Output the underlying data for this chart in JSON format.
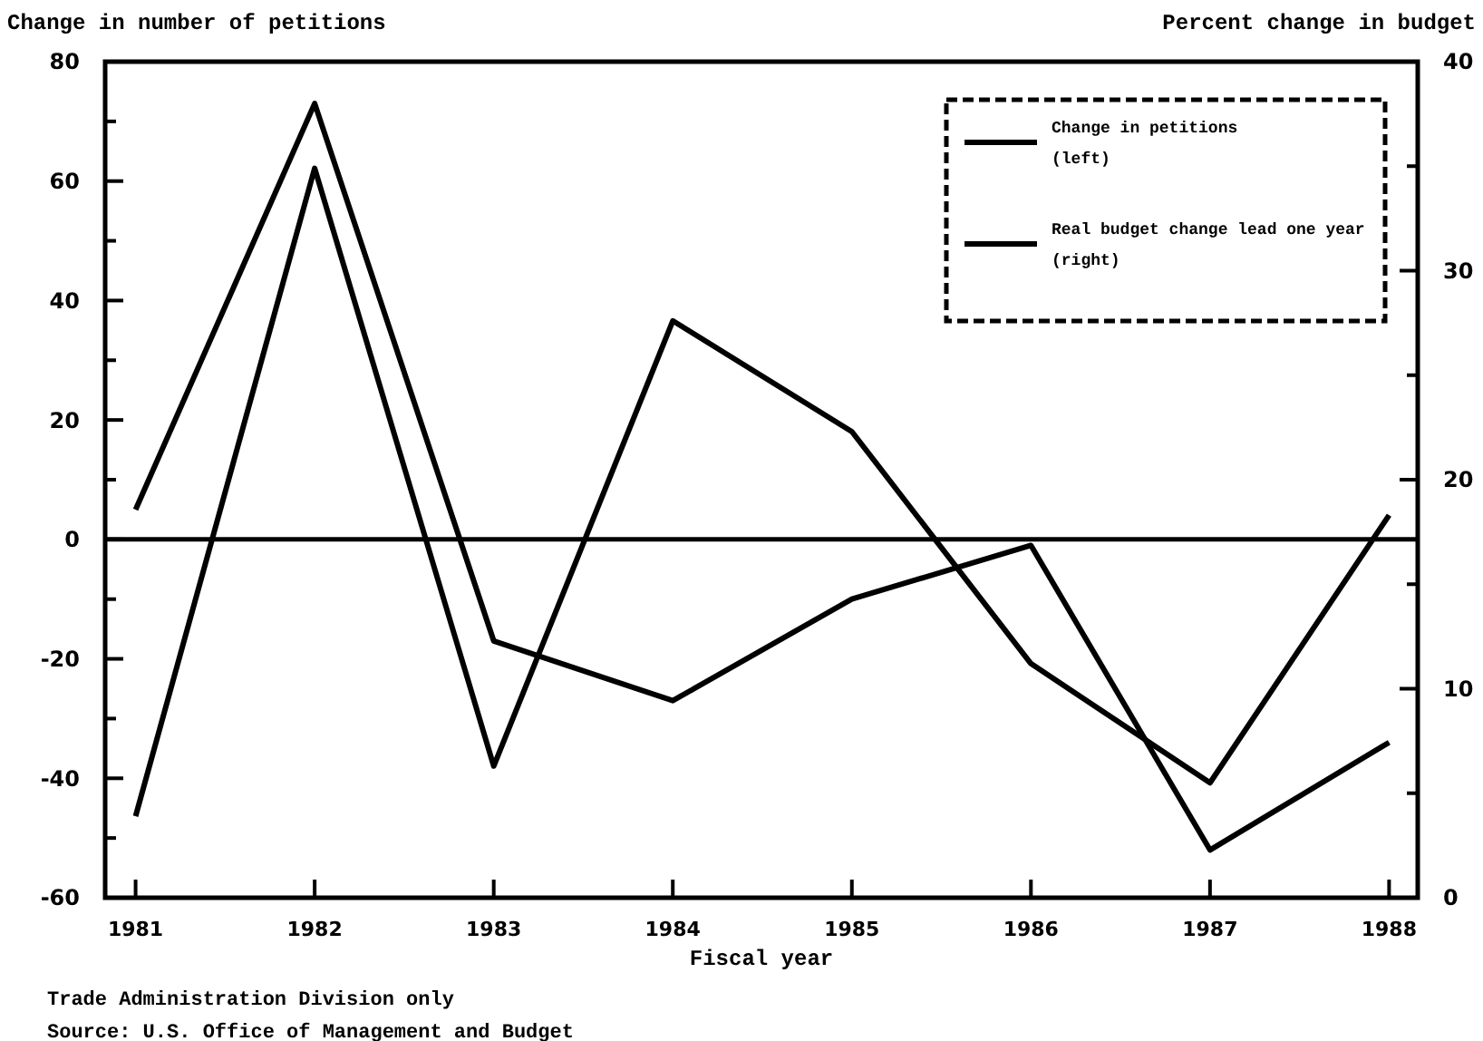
{
  "chart_data": {
    "type": "line",
    "xlabel": "Fiscal year",
    "ylabel": "Change in number of petitions",
    "y2label": "Percent change in budget",
    "x": [
      1981,
      1982,
      1983,
      1984,
      1985,
      1986,
      1987,
      1988
    ],
    "xlim": [
      1980.83,
      1988.16
    ],
    "xticks": [
      1981,
      1982,
      1983,
      1984,
      1985,
      1986,
      1987,
      1988
    ],
    "ylim": [
      -60,
      80
    ],
    "yticks": [
      -60,
      {
        "value": -50,
        "label": null
      },
      -40,
      {
        "value": -30,
        "label": null
      },
      -20,
      {
        "value": -10,
        "label": null
      },
      0,
      {
        "value": 10,
        "label": null
      },
      20,
      {
        "value": 30,
        "label": null
      },
      40,
      {
        "value": 50,
        "label": null
      },
      60,
      {
        "value": 70,
        "label": null
      },
      80
    ],
    "y2lim": [
      0,
      40
    ],
    "y2ticks": [
      0,
      {
        "value": 5,
        "label": null
      },
      10,
      {
        "value": 15,
        "label": null
      },
      20,
      {
        "value": 25,
        "label": null
      },
      30,
      {
        "value": 35,
        "label": null
      },
      40
    ],
    "series": [
      {
        "name": "Change in petitions (left)",
        "color": "#000000",
        "values": [
          5,
          73,
          -17,
          -27,
          -10,
          -1,
          -52,
          -34
        ]
      },
      {
        "name": "Real budget change lead one year (right)",
        "color": "#000000",
        "axis": "y2",
        "values": [
          3.9,
          34.9,
          6.3,
          27.6,
          22.3,
          11.2,
          5.5,
          18.3
        ]
      }
    ],
    "ref_lines": [
      {
        "axis": "y",
        "value": 0,
        "color": "#000000"
      }
    ],
    "legend": "top right",
    "grid": false,
    "annotations": [
      "Trade Administration Division only",
      "Source: U.S. Office of Management and Budget"
    ]
  }
}
